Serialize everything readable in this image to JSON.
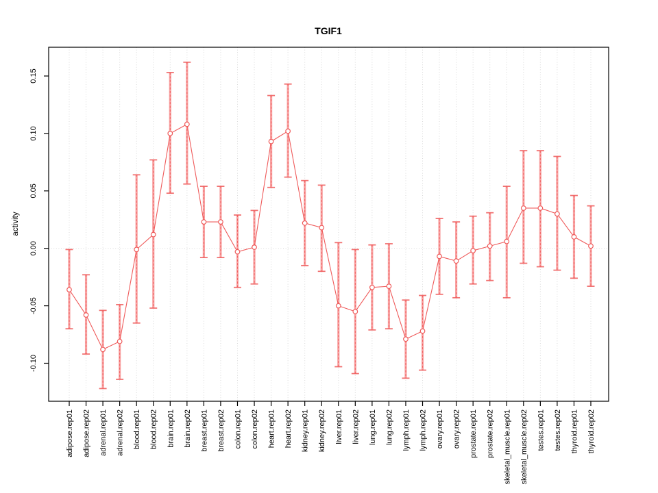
{
  "chart_data": {
    "type": "line",
    "subtype": "points-with-error-bars",
    "title": "TGIF1",
    "xlabel": "",
    "ylabel": "activity",
    "ylim": [
      -0.133,
      0.175
    ],
    "grid": "vertical dotted gridline at every category; dotted horizontal line at y=0; no legend",
    "ytick_values": [
      0.15,
      0.1,
      0.05,
      0.0,
      -0.05,
      -0.1
    ],
    "ytick_labels": [
      "0.15",
      "0.10",
      "0.05",
      "0.00",
      "-0.05",
      "-0.10"
    ],
    "categories": [
      "adipose.rep01",
      "adipose.rep02",
      "adrenal.rep01",
      "adrenal.rep02",
      "blood.rep01",
      "blood.rep02",
      "brain.rep01",
      "brain.rep02",
      "breast.rep01",
      "breast.rep02",
      "colon.rep01",
      "colon.rep02",
      "heart.rep01",
      "heart.rep02",
      "kidney.rep01",
      "kidney.rep02",
      "liver.rep01",
      "liver.rep02",
      "lung.rep01",
      "lung.rep02",
      "lymph.rep01",
      "lymph.rep02",
      "ovary.rep01",
      "ovary.rep02",
      "prostate.rep01",
      "prostate.rep02",
      "skeletal_muscle.rep01",
      "skeletal_muscle.rep02",
      "testes.rep01",
      "testes.rep02",
      "thyroid.rep01",
      "thyroid.rep02"
    ],
    "series": [
      {
        "name": "activity",
        "values": [
          -0.036,
          -0.058,
          -0.088,
          -0.081,
          -0.001,
          0.012,
          0.1,
          0.108,
          0.023,
          0.023,
          -0.003,
          0.001,
          0.093,
          0.102,
          0.022,
          0.018,
          -0.05,
          -0.055,
          -0.034,
          -0.033,
          -0.079,
          -0.072,
          -0.007,
          -0.011,
          -0.002,
          0.002,
          0.006,
          0.035,
          0.035,
          0.03,
          0.01,
          0.002
        ],
        "lower": [
          -0.07,
          -0.092,
          -0.122,
          -0.114,
          -0.065,
          -0.052,
          0.048,
          0.056,
          -0.008,
          -0.008,
          -0.034,
          -0.031,
          0.053,
          0.062,
          -0.015,
          -0.02,
          -0.103,
          -0.109,
          -0.071,
          -0.07,
          -0.113,
          -0.106,
          -0.04,
          -0.043,
          -0.031,
          -0.028,
          -0.043,
          -0.013,
          -0.016,
          -0.019,
          -0.026,
          -0.033
        ],
        "upper": [
          -0.001,
          -0.023,
          -0.054,
          -0.049,
          0.064,
          0.077,
          0.153,
          0.162,
          0.054,
          0.054,
          0.029,
          0.033,
          0.133,
          0.143,
          0.059,
          0.055,
          0.005,
          -0.001,
          0.003,
          0.004,
          -0.045,
          -0.041,
          0.026,
          0.023,
          0.028,
          0.031,
          0.054,
          0.085,
          0.085,
          0.08,
          0.046,
          0.037
        ]
      }
    ],
    "colors": {
      "accent": "#EF5A5A",
      "accent_pale": "#F8A3A3",
      "grid": "#D9D9D9",
      "axis": "#000000",
      "background": "#FFFFFF"
    }
  }
}
